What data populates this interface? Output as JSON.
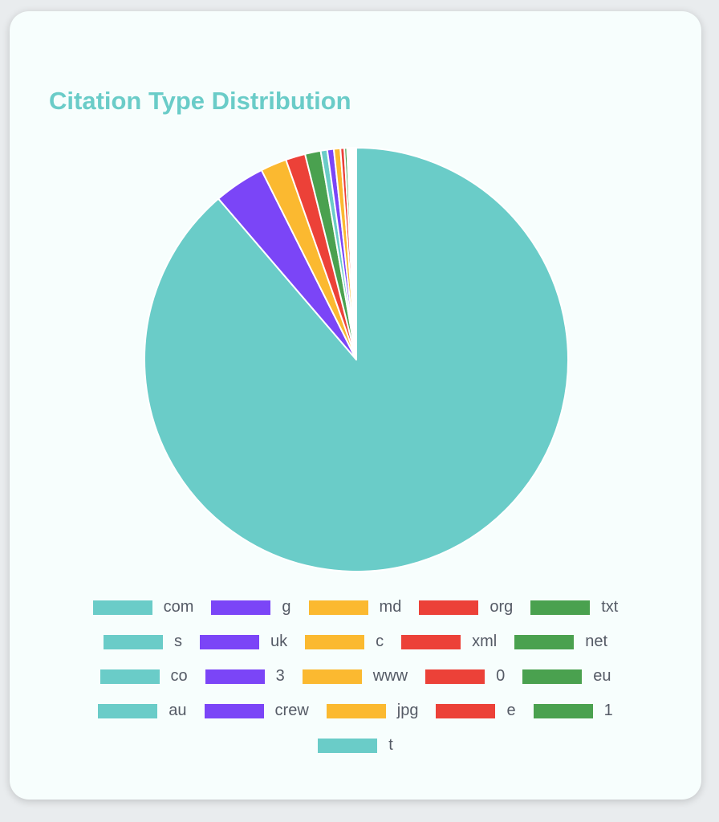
{
  "card": {
    "title": "Citation Type Distribution"
  },
  "colors": {
    "title": "#6accc8",
    "palette": [
      "#6accc8",
      "#7b45f7",
      "#fbb930",
      "#ec4138",
      "#4aa14f"
    ]
  },
  "chart_data": {
    "type": "pie",
    "title": "Citation Type Distribution",
    "start_angle_deg": 0,
    "legend_position": "bottom",
    "categories": [
      "com",
      "g",
      "md",
      "org",
      "txt",
      "s",
      "uk",
      "c",
      "xml",
      "net",
      "co",
      "3",
      "www",
      "0",
      "eu",
      "au",
      "crew",
      "jpg",
      "e",
      "1",
      "t"
    ],
    "values": [
      88.9,
      3.9,
      2.0,
      1.5,
      1.2,
      0.5,
      0.5,
      0.5,
      0.3,
      0.2,
      0.1,
      0.1,
      0.1,
      0.05,
      0.05,
      0.05,
      0.05,
      0.05,
      0.05,
      0.05,
      0.05
    ]
  }
}
